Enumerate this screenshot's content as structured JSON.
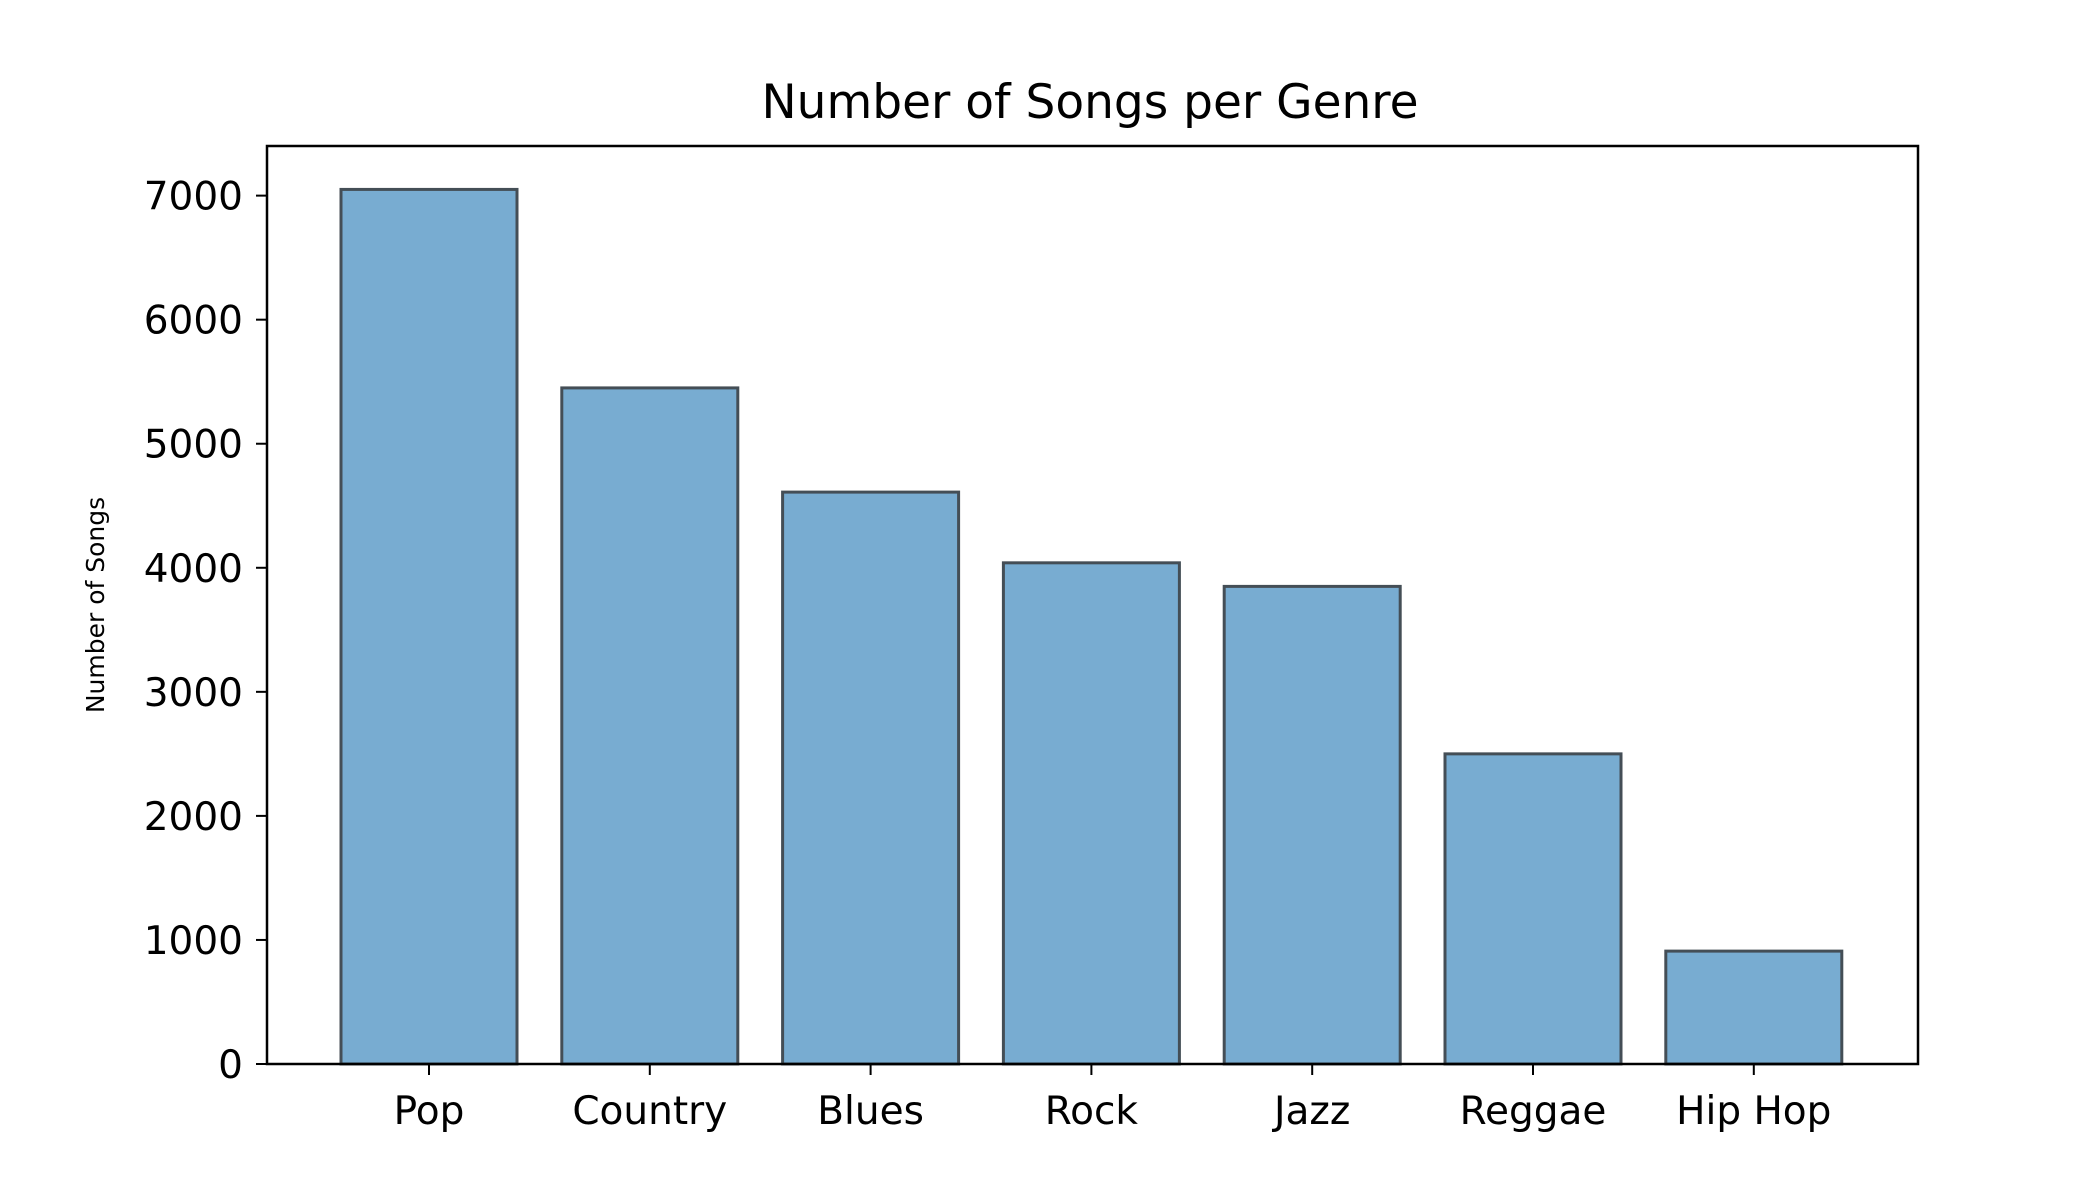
{
  "chart_data": {
    "type": "bar",
    "title": "Number of Songs per Genre",
    "xlabel": "",
    "ylabel": "Number of Songs",
    "categories": [
      "Pop",
      "Country",
      "Blues",
      "Rock",
      "Jazz",
      "Reggae",
      "Hip Hop"
    ],
    "values": [
      7050,
      5450,
      4610,
      4040,
      3850,
      2500,
      910
    ],
    "ylim": [
      0,
      7400
    ],
    "yticks": [
      0,
      1000,
      2000,
      3000,
      4000,
      5000,
      6000,
      7000
    ],
    "ytick_labels": [
      "0",
      "1000",
      "2000",
      "3000",
      "4000",
      "5000",
      "6000",
      "7000"
    ],
    "grid": false,
    "legend": "none",
    "colors": {
      "bar_fill": "#78acd1",
      "bar_edge": "#444e56",
      "axis": "#000000",
      "background": "#ffffff"
    }
  }
}
